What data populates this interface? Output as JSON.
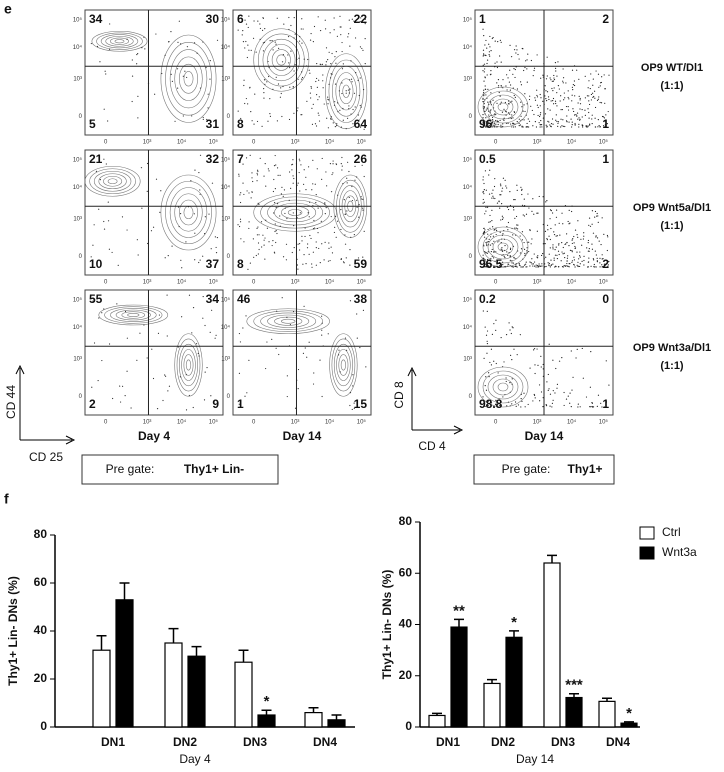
{
  "panel_e": {
    "label": "e",
    "tick_labels_y": [
      "10⁵",
      "10⁴",
      "10³",
      "0"
    ],
    "tick_labels_x": [
      "0",
      "10³",
      "10⁴",
      "10⁵"
    ],
    "columns": [
      "Day 4",
      "Day 14",
      "Day 14"
    ],
    "rows": [
      {
        "label": "OP9 WT/Dl1",
        "ratio": "(1:1)",
        "plots": [
          [
            34,
            30,
            5,
            31
          ],
          [
            6,
            22,
            8,
            64
          ],
          [
            1,
            2,
            96,
            1
          ]
        ]
      },
      {
        "label": "OP9 Wnt5a/Dl1",
        "ratio": "(1:1)",
        "plots": [
          [
            21,
            32,
            10,
            37
          ],
          [
            7,
            26,
            8,
            59
          ],
          [
            0.5,
            1,
            96.5,
            2
          ]
        ]
      },
      {
        "label": "OP9 Wnt3a/Dl1",
        "ratio": "(1:1)",
        "plots": [
          [
            55,
            34,
            2,
            9
          ],
          [
            46,
            38,
            1,
            15
          ],
          [
            0.2,
            0,
            98.8,
            1
          ]
        ]
      }
    ],
    "axes_left": {
      "y": "CD 44",
      "x": "CD 25"
    },
    "axes_right": {
      "y": "CD 8",
      "x": "CD 4"
    },
    "gates": [
      {
        "prefix": "Pre gate:",
        "population": "Thy1+ Lin-"
      },
      {
        "prefix": "Pre gate:",
        "population": "Thy1+"
      }
    ]
  },
  "panel_f_label": "f",
  "chart_data": [
    {
      "type": "bar",
      "xlabel": "Day 4",
      "ylabel": "Thy1+ Lin- DNs (%)",
      "categories": [
        "DN1",
        "DN2",
        "DN3",
        "DN4"
      ],
      "ylim": [
        0,
        80
      ],
      "yticks": [
        0,
        20,
        40,
        60,
        80
      ],
      "series": [
        {
          "name": "Ctrl",
          "color": "#ffffff",
          "values": [
            32,
            35,
            27,
            6
          ],
          "errors": [
            6,
            6,
            5,
            2
          ],
          "labels": [
            null,
            null,
            null,
            null
          ]
        },
        {
          "name": "Wnt3a",
          "color": "#000000",
          "values": [
            53,
            29.5,
            5,
            3
          ],
          "errors": [
            7,
            4,
            2,
            2
          ],
          "labels": [
            null,
            null,
            "*",
            null
          ]
        }
      ]
    },
    {
      "type": "bar",
      "xlabel": "Day 14",
      "ylabel": "Thy1+ Lin- DNs (%)",
      "categories": [
        "DN1",
        "DN2",
        "DN3",
        "DN4"
      ],
      "ylim": [
        0,
        80
      ],
      "yticks": [
        0,
        20,
        40,
        60,
        80
      ],
      "legend": "upper right",
      "series": [
        {
          "name": "Ctrl",
          "color": "#ffffff",
          "values": [
            4.5,
            17,
            64,
            10
          ],
          "errors": [
            0.8,
            1.5,
            3,
            1.2
          ],
          "labels": [
            null,
            null,
            null,
            null
          ]
        },
        {
          "name": "Wnt3a",
          "color": "#000000",
          "values": [
            39,
            35,
            11.5,
            1.5
          ],
          "errors": [
            3,
            2.5,
            1.5,
            0.5
          ],
          "labels": [
            "**",
            "*",
            "***",
            "*"
          ]
        }
      ]
    }
  ]
}
